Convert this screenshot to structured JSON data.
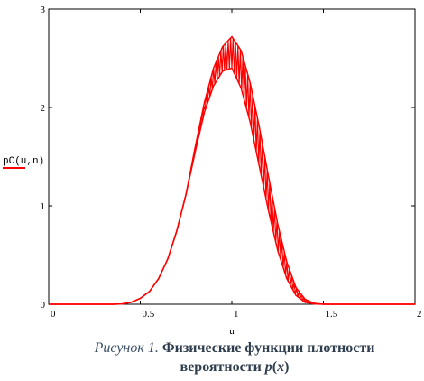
{
  "chart_data": {
    "type": "line",
    "ylabel": "pC(u,n)",
    "xlabel": "u",
    "xlim": [
      0,
      2
    ],
    "ylim": [
      0,
      3
    ],
    "x_ticks": [
      "0",
      "0.5",
      "1",
      "1.5",
      "2"
    ],
    "y_ticks": [
      "0",
      "1",
      "2",
      "3"
    ],
    "grid": false,
    "series_color": "#ff0000",
    "envelope": {
      "x": [
        0,
        0.35,
        0.4,
        0.45,
        0.5,
        0.55,
        0.6,
        0.65,
        0.7,
        0.75,
        0.8,
        0.85,
        0.9,
        0.95,
        1.0,
        1.05,
        1.1,
        1.15,
        1.2,
        1.25,
        1.3,
        1.35,
        1.4,
        1.45,
        1.5,
        1.55,
        2.0
      ],
      "y_lower": [
        0,
        0,
        0.003,
        0.02,
        0.06,
        0.13,
        0.26,
        0.46,
        0.75,
        1.12,
        1.55,
        1.95,
        2.22,
        2.37,
        2.4,
        2.2,
        1.85,
        1.4,
        0.95,
        0.55,
        0.26,
        0.09,
        0.02,
        0.003,
        0,
        0,
        0
      ],
      "y_upper": [
        0,
        0,
        0.003,
        0.02,
        0.06,
        0.13,
        0.26,
        0.46,
        0.75,
        1.12,
        1.6,
        2.05,
        2.4,
        2.62,
        2.72,
        2.58,
        2.25,
        1.8,
        1.3,
        0.82,
        0.43,
        0.17,
        0.05,
        0.01,
        0,
        0,
        0
      ]
    }
  },
  "caption": {
    "prefix": "Рисунок 1.",
    "title_line1": "Физические функции плотности",
    "title_line2_text": "вероятности ",
    "title_var": "p",
    "title_open": "(",
    "title_arg": "x",
    "title_close": ")"
  }
}
